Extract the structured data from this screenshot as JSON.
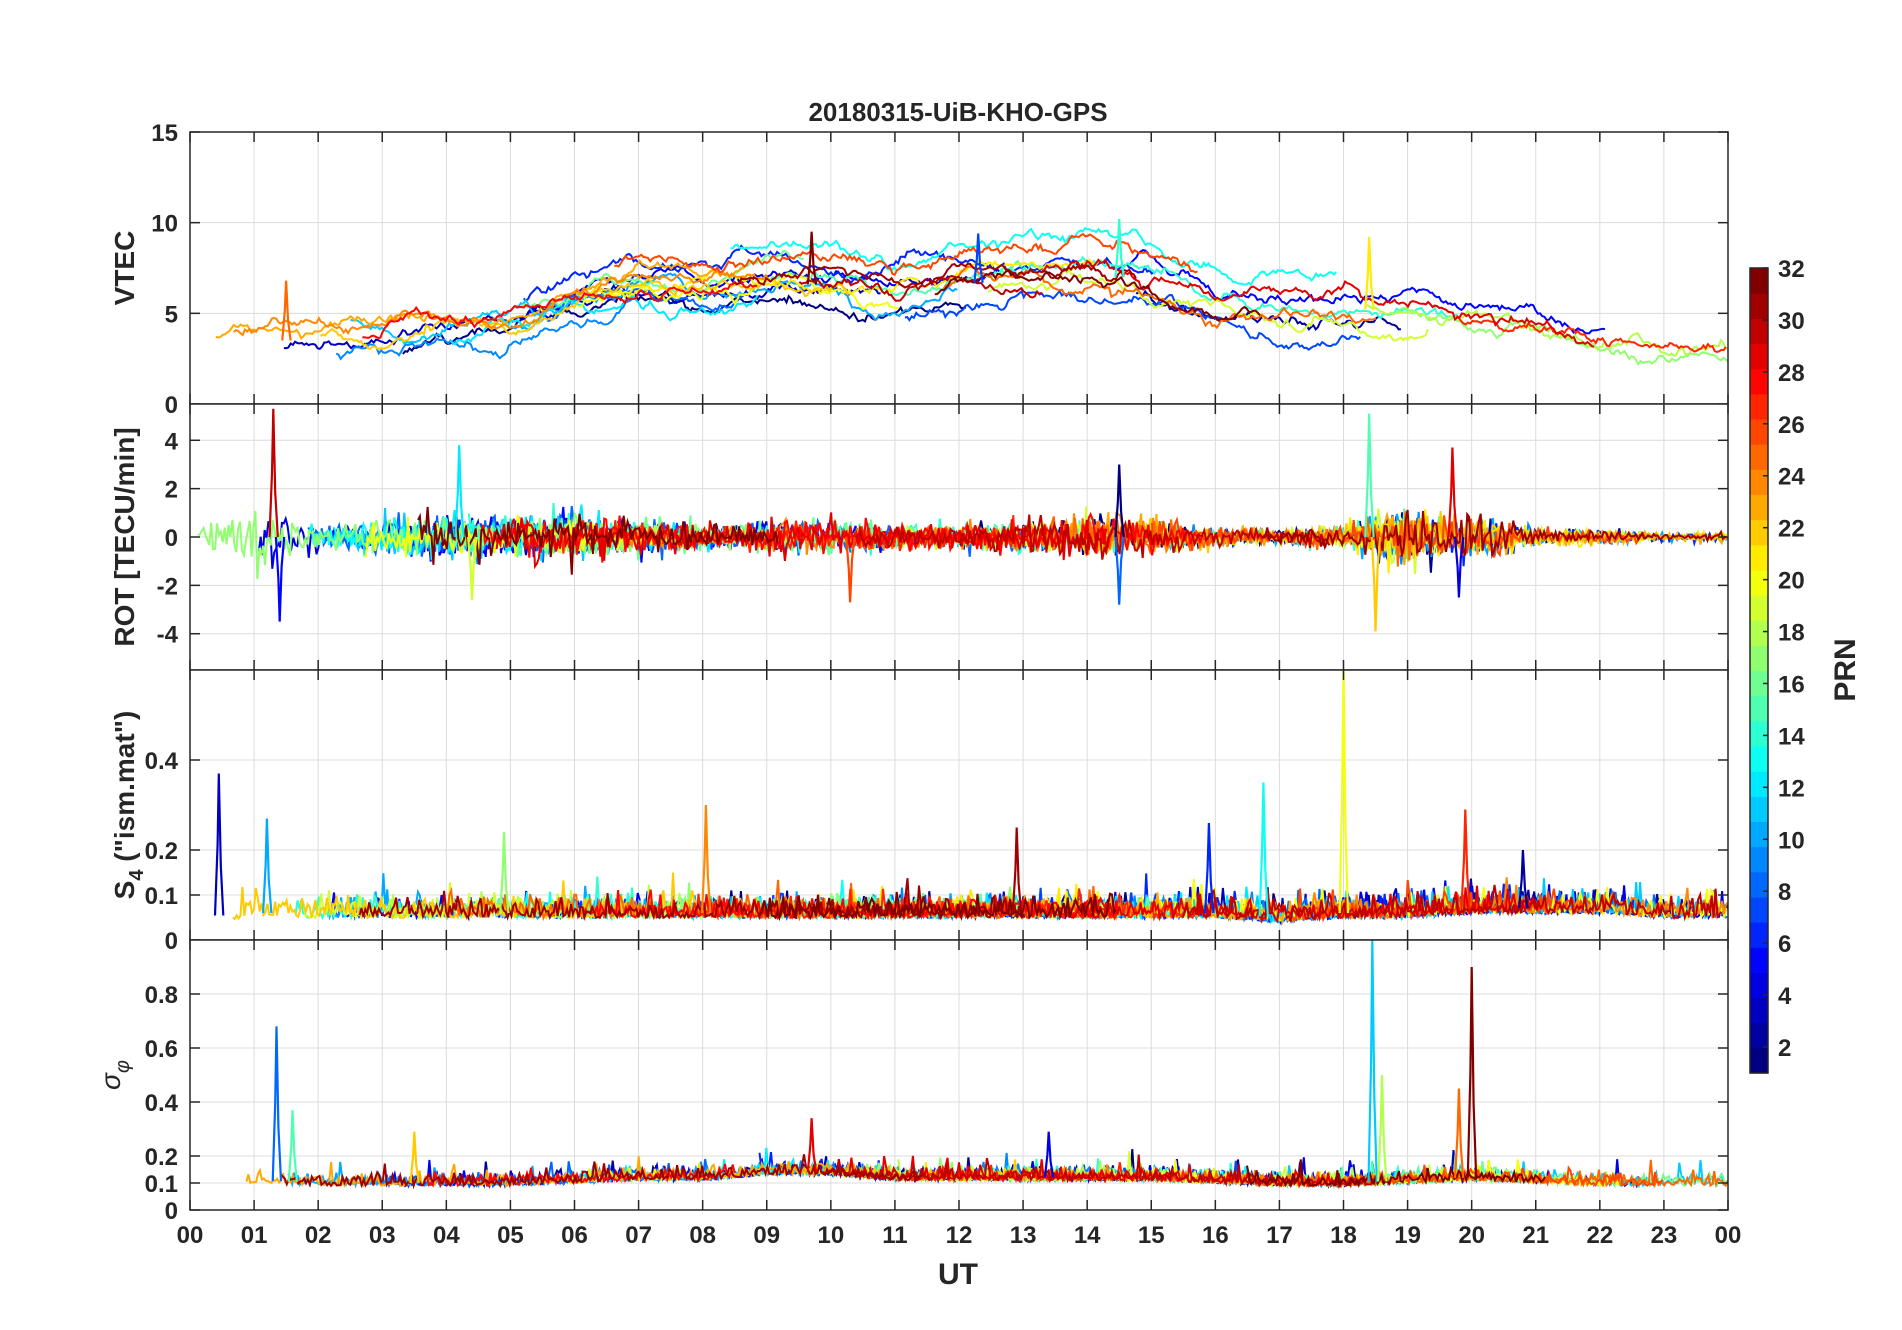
{
  "title": "20180315-UiB-KHO-GPS",
  "xlabel": "UT",
  "x_ticks": [
    "00",
    "01",
    "02",
    "03",
    "04",
    "05",
    "06",
    "07",
    "08",
    "09",
    "10",
    "11",
    "12",
    "13",
    "14",
    "15",
    "16",
    "17",
    "18",
    "19",
    "20",
    "21",
    "22",
    "23",
    "00"
  ],
  "colorbar": {
    "label": "PRN",
    "ticks": [
      "2",
      "4",
      "6",
      "8",
      "10",
      "12",
      "14",
      "16",
      "18",
      "20",
      "22",
      "24",
      "26",
      "28",
      "30",
      "32"
    ],
    "range": [
      1,
      32
    ],
    "colormap": "jet",
    "colors": [
      "#00008f",
      "#0000ff",
      "#0080ff",
      "#00ffff",
      "#80ff80",
      "#ffff00",
      "#ff8000",
      "#ff0000",
      "#800000"
    ]
  },
  "chart_data": [
    {
      "type": "line",
      "panel": "VTEC",
      "ylabel": "VTEC",
      "xlim": [
        0,
        24
      ],
      "ylim": [
        0,
        15
      ],
      "y_ticks": [
        "0",
        "5",
        "10",
        "15"
      ],
      "grid": true,
      "series_count": 32,
      "approx_envelope": {
        "x": [
          0,
          1,
          2,
          3,
          4,
          5,
          6,
          7,
          8,
          9,
          10,
          11,
          12,
          13,
          14,
          15,
          16,
          17,
          18,
          19,
          20,
          21,
          22,
          23,
          24
        ],
        "y": [
          2.8,
          3.4,
          3.6,
          3.7,
          3.9,
          4.3,
          5.6,
          6.4,
          6.2,
          6.6,
          6.6,
          6.1,
          6.6,
          6.9,
          7.4,
          6.6,
          5.3,
          4.9,
          5.3,
          5.1,
          4.6,
          4.1,
          3.0,
          2.6,
          2.6
        ]
      },
      "peaks": [
        {
          "x": 1.5,
          "y": 6.8
        },
        {
          "x": 9.7,
          "y": 9.5
        },
        {
          "x": 12.3,
          "y": 9.4
        },
        {
          "x": 14.5,
          "y": 10.2
        },
        {
          "x": 18.4,
          "y": 9.2
        }
      ]
    },
    {
      "type": "line",
      "panel": "ROT",
      "ylabel": "ROT [TECU/min]",
      "xlim": [
        0,
        24
      ],
      "ylim": [
        -5.5,
        5.5
      ],
      "y_ticks": [
        "-4",
        "-2",
        "0",
        "2",
        "4"
      ],
      "grid": true,
      "series_count": 32,
      "approx_noise_amplitude": {
        "x": [
          0,
          1,
          2,
          3,
          4,
          5,
          6,
          7,
          8,
          9,
          10,
          11,
          12,
          13,
          14,
          15,
          16,
          17,
          18,
          19,
          20,
          21,
          22,
          23,
          24
        ],
        "y": [
          0.3,
          1.6,
          0.6,
          0.7,
          1.0,
          0.8,
          0.9,
          0.7,
          0.5,
          0.6,
          0.8,
          0.5,
          0.5,
          0.7,
          1.0,
          0.8,
          0.4,
          0.3,
          0.5,
          1.2,
          0.9,
          0.4,
          0.3,
          0.2,
          0.2
        ]
      },
      "spikes": [
        {
          "x": 1.3,
          "y": 5.3
        },
        {
          "x": 1.4,
          "y": -3.5
        },
        {
          "x": 4.2,
          "y": 3.8
        },
        {
          "x": 4.4,
          "y": -2.6
        },
        {
          "x": 10.3,
          "y": -2.7
        },
        {
          "x": 14.5,
          "y": 3.0
        },
        {
          "x": 14.5,
          "y": -2.8
        },
        {
          "x": 18.4,
          "y": 5.1
        },
        {
          "x": 18.5,
          "y": -3.9
        },
        {
          "x": 19.7,
          "y": 3.7
        },
        {
          "x": 19.8,
          "y": -2.5
        }
      ]
    },
    {
      "type": "line",
      "panel": "S4",
      "ylabel": "S4 (\"ism.mat\")",
      "ylabel_main": "S",
      "ylabel_sub": "4",
      "ylabel_rest": " (\"ism.mat\")",
      "xlim": [
        0,
        24
      ],
      "ylim": [
        0,
        0.6
      ],
      "y_ticks": [
        "0",
        "0.1",
        "0.2",
        "0.4"
      ],
      "grid": true,
      "series_count": 32,
      "approx_baseline": {
        "x": [
          0,
          1,
          2,
          3,
          4,
          5,
          6,
          7,
          8,
          9,
          10,
          11,
          12,
          13,
          14,
          15,
          16,
          17,
          18,
          19,
          20,
          21,
          22,
          23,
          24
        ],
        "y": [
          0.05,
          0.06,
          0.06,
          0.06,
          0.06,
          0.06,
          0.06,
          0.06,
          0.06,
          0.06,
          0.06,
          0.06,
          0.06,
          0.06,
          0.06,
          0.06,
          0.06,
          0.05,
          0.06,
          0.06,
          0.07,
          0.07,
          0.07,
          0.06,
          0.06
        ]
      },
      "spikes": [
        {
          "x": 0.45,
          "y": 0.37
        },
        {
          "x": 1.2,
          "y": 0.27
        },
        {
          "x": 4.9,
          "y": 0.24
        },
        {
          "x": 8.05,
          "y": 0.3
        },
        {
          "x": 12.9,
          "y": 0.25
        },
        {
          "x": 15.9,
          "y": 0.26
        },
        {
          "x": 16.75,
          "y": 0.35
        },
        {
          "x": 18.0,
          "y": 0.6
        },
        {
          "x": 19.9,
          "y": 0.29
        },
        {
          "x": 20.8,
          "y": 0.2
        }
      ]
    },
    {
      "type": "line",
      "panel": "sigma_phi",
      "ylabel": "σφ",
      "ylabel_main": "σ",
      "ylabel_sub": "φ",
      "xlim": [
        0,
        24
      ],
      "ylim": [
        0,
        1
      ],
      "y_ticks": [
        "0",
        "0.1",
        "0.2",
        "0.4",
        "0.6",
        "0.8"
      ],
      "grid": true,
      "series_count": 32,
      "approx_baseline": {
        "x": [
          0,
          1,
          2,
          3,
          4,
          5,
          6,
          7,
          8,
          9,
          10,
          11,
          12,
          13,
          14,
          15,
          16,
          17,
          18,
          19,
          20,
          21,
          22,
          23,
          24
        ],
        "y": [
          0.1,
          0.11,
          0.1,
          0.1,
          0.1,
          0.1,
          0.11,
          0.12,
          0.12,
          0.14,
          0.14,
          0.12,
          0.12,
          0.12,
          0.12,
          0.12,
          0.11,
          0.1,
          0.1,
          0.11,
          0.12,
          0.11,
          0.1,
          0.1,
          0.1
        ]
      },
      "spikes": [
        {
          "x": 1.35,
          "y": 0.68
        },
        {
          "x": 1.6,
          "y": 0.37
        },
        {
          "x": 3.5,
          "y": 0.29
        },
        {
          "x": 9.7,
          "y": 0.34
        },
        {
          "x": 13.4,
          "y": 0.29
        },
        {
          "x": 18.45,
          "y": 1.0
        },
        {
          "x": 18.6,
          "y": 0.5
        },
        {
          "x": 19.8,
          "y": 0.45
        },
        {
          "x": 20.0,
          "y": 0.9
        }
      ]
    }
  ]
}
